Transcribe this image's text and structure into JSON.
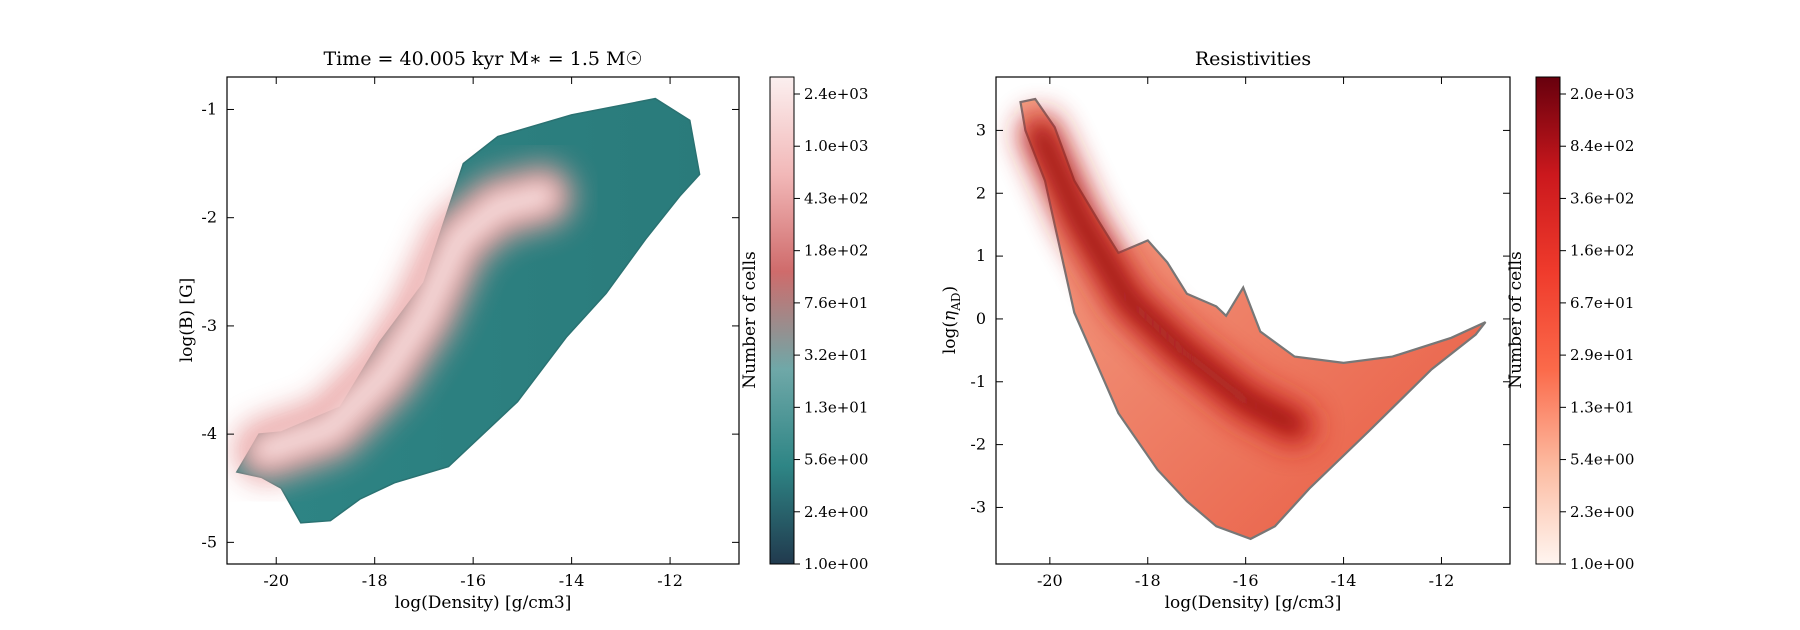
{
  "chart_data": [
    {
      "type": "heatmap",
      "title": "Time = 40.005 kyr    M$_*$ = 1.5 M$_\\odot$",
      "title_display": "Time = 40.005 kyr    M∗ = 1.5 M☉",
      "xlabel": "log(Density) [g/cm3]",
      "ylabel": "log(B) [G]",
      "xlim": [
        -21,
        -10.6
      ],
      "ylim": [
        -5.2,
        -0.7
      ],
      "xticks": [
        -20,
        -18,
        -16,
        -14,
        -12
      ],
      "yticks": [
        -5,
        -4,
        -3,
        -2,
        -1
      ],
      "colorbar": {
        "label": "Number of cells",
        "scale": "log",
        "colormap": "teal-to-pink diverging",
        "colors": [
          "#213a4e",
          "#2e8585",
          "#6fa8a8",
          "#cf6b6b",
          "#f2b8b8",
          "#fbefef"
        ],
        "ticks": [
          "1.0e+00",
          "2.4e+00",
          "5.6e+00",
          "1.3e+01",
          "3.2e+01",
          "7.6e+01",
          "1.8e+02",
          "4.3e+02",
          "1.0e+03",
          "2.4e+03"
        ]
      },
      "region_outline": [
        [
          -20.8,
          -4.35
        ],
        [
          -20.35,
          -4.0
        ],
        [
          -19.9,
          -3.98
        ],
        [
          -18.7,
          -3.75
        ],
        [
          -17.9,
          -3.15
        ],
        [
          -17.0,
          -2.6
        ],
        [
          -16.2,
          -1.5
        ],
        [
          -15.5,
          -1.25
        ],
        [
          -14.0,
          -1.05
        ],
        [
          -12.3,
          -0.9
        ],
        [
          -11.6,
          -1.1
        ],
        [
          -11.4,
          -1.6
        ],
        [
          -11.8,
          -1.8
        ],
        [
          -12.5,
          -2.2
        ],
        [
          -13.3,
          -2.7
        ],
        [
          -14.1,
          -3.1
        ],
        [
          -15.1,
          -3.7
        ],
        [
          -16.5,
          -4.3
        ],
        [
          -17.6,
          -4.45
        ],
        [
          -18.3,
          -4.6
        ],
        [
          -18.9,
          -4.8
        ],
        [
          -19.5,
          -4.82
        ],
        [
          -19.9,
          -4.5
        ],
        [
          -20.3,
          -4.4
        ]
      ],
      "density_ridge": [
        [
          -20.2,
          -4.15
        ],
        [
          -18.9,
          -3.95
        ],
        [
          -17.8,
          -3.45
        ],
        [
          -17.0,
          -2.9
        ],
        [
          -16.3,
          -2.2
        ],
        [
          -15.5,
          -1.9
        ],
        [
          -14.6,
          -1.8
        ]
      ]
    },
    {
      "type": "heatmap",
      "title": "Resistivities",
      "xlabel": "log(Density) [g/cm3]",
      "ylabel": "log($\\eta_{\\rm AD}$)",
      "xlim": [
        -21.1,
        -10.6
      ],
      "ylim": [
        -3.9,
        3.85
      ],
      "xticks": [
        -20,
        -18,
        -16,
        -14,
        -12
      ],
      "yticks": [
        -3,
        -2,
        -1,
        0,
        1,
        2,
        3
      ],
      "colorbar": {
        "label": "Number of cells",
        "scale": "log",
        "colormap": "Reds",
        "colors": [
          "#fff5f0",
          "#fcbba1",
          "#fb6a4a",
          "#ef3b2c",
          "#cb181d",
          "#67000d"
        ],
        "ticks": [
          "1.0e+00",
          "2.3e+00",
          "5.4e+00",
          "1.3e+01",
          "2.9e+01",
          "6.7e+01",
          "1.6e+02",
          "3.6e+02",
          "8.4e+02",
          "2.0e+03"
        ]
      },
      "region_outline": [
        [
          -20.6,
          3.45
        ],
        [
          -20.3,
          3.5
        ],
        [
          -19.9,
          3.05
        ],
        [
          -19.5,
          2.2
        ],
        [
          -19.0,
          1.55
        ],
        [
          -18.6,
          1.05
        ],
        [
          -18.0,
          1.25
        ],
        [
          -17.6,
          0.9
        ],
        [
          -17.2,
          0.4
        ],
        [
          -16.6,
          0.2
        ],
        [
          -16.4,
          0.05
        ],
        [
          -16.05,
          0.5
        ],
        [
          -15.7,
          -0.2
        ],
        [
          -15.0,
          -0.6
        ],
        [
          -14.0,
          -0.7
        ],
        [
          -13.0,
          -0.6
        ],
        [
          -11.8,
          -0.3
        ],
        [
          -11.1,
          -0.05
        ],
        [
          -11.3,
          -0.25
        ],
        [
          -12.2,
          -0.8
        ],
        [
          -13.5,
          -1.8
        ],
        [
          -14.7,
          -2.7
        ],
        [
          -15.4,
          -3.3
        ],
        [
          -15.9,
          -3.5
        ],
        [
          -16.6,
          -3.3
        ],
        [
          -17.2,
          -2.9
        ],
        [
          -17.8,
          -2.4
        ],
        [
          -18.6,
          -1.5
        ],
        [
          -19.5,
          0.1
        ],
        [
          -19.9,
          1.5
        ],
        [
          -20.1,
          2.2
        ],
        [
          -20.5,
          3.0
        ]
      ],
      "density_ridge": [
        [
          -20.2,
          2.95
        ],
        [
          -19.4,
          1.6
        ],
        [
          -18.4,
          0.3
        ],
        [
          -17.3,
          -0.5
        ],
        [
          -16.0,
          -1.3
        ],
        [
          -15.0,
          -1.7
        ]
      ]
    }
  ]
}
